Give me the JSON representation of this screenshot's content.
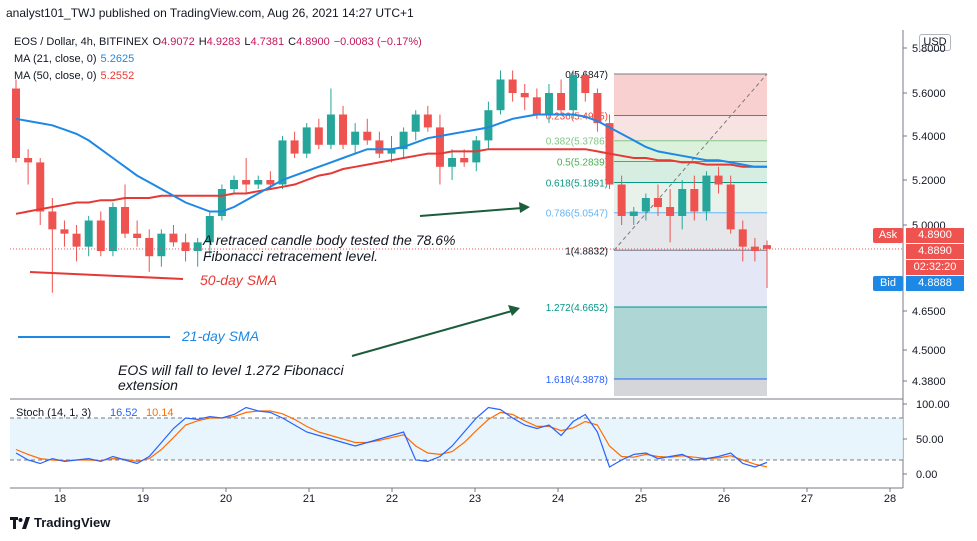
{
  "header": {
    "publish_line": "analyst101_TWJ published on TradingView.com, Aug 26, 2021 14:27 UTC+1"
  },
  "legend": {
    "symbol": "EOS / Dollar, 4h, BITFINEX",
    "open_label": "O",
    "open": "4.9072",
    "high_label": "H",
    "high": "4.9283",
    "low_label": "L",
    "low": "4.7381",
    "close_label": "C",
    "close": "4.8900",
    "change": "−0.0083 (−0.17%)",
    "ma21_label": "MA (21, close, 0)",
    "ma21_value": "5.2625",
    "ma50_label": "MA (50, close, 0)",
    "ma50_value": "5.2552"
  },
  "currency": "USD",
  "price_tags": {
    "ask_label": "Ask",
    "ask_value": "4.8900",
    "last_value": "4.8890",
    "countdown": "02:32:20",
    "bid_label": "Bid",
    "bid_value": "4.8888"
  },
  "colors": {
    "up": "#26a69a",
    "down": "#ef5350",
    "ma21": "#1e88e5",
    "ma50": "#e53935",
    "stoch_k": "#2962ff",
    "stoch_d": "#ff6d00",
    "annotation_green": "#1b5e3b"
  },
  "annotations": {
    "retrace_line1": "A retraced candle body tested the 78.6%",
    "retrace_line2": "Fibonacci retracement level.",
    "sma50": "50-day SMA",
    "sma21": "21-day SMA",
    "fall_line1": "EOS will fall to level 1.272 Fibonacci",
    "fall_line2": "extension"
  },
  "stoch": {
    "label": "Stoch (14, 1, 3)",
    "k_value": "16.52",
    "d_value": "10.14",
    "ticks": [
      "100.00",
      "50.00",
      "0.00"
    ]
  },
  "footer": {
    "brand": "TradingView",
    "logo_icon": "tradingview-logo-icon"
  },
  "chart_data": {
    "type": "candlestick",
    "price_axis": {
      "ticks": [
        "5.8000",
        "5.6000",
        "5.4000",
        "5.2000",
        "5.0000",
        "4.6500",
        "4.5000",
        "4.3800"
      ]
    },
    "time_axis": {
      "labels": [
        "18",
        "19",
        "20",
        "21",
        "22",
        "23",
        "24",
        "25",
        "26",
        "27",
        "28"
      ]
    },
    "candles": [
      [
        5.62,
        5.66,
        5.28,
        5.3
      ],
      [
        5.3,
        5.34,
        5.18,
        5.28
      ],
      [
        5.28,
        5.3,
        5.0,
        5.06
      ],
      [
        5.06,
        5.12,
        4.72,
        4.98
      ],
      [
        4.98,
        5.02,
        4.9,
        4.96
      ],
      [
        4.96,
        5.0,
        4.84,
        4.9
      ],
      [
        4.9,
        5.04,
        4.86,
        5.02
      ],
      [
        5.02,
        5.06,
        4.86,
        4.88
      ],
      [
        4.88,
        5.1,
        4.86,
        5.08
      ],
      [
        5.08,
        5.18,
        4.94,
        4.96
      ],
      [
        4.96,
        5.02,
        4.9,
        4.94
      ],
      [
        4.94,
        4.98,
        4.8,
        4.86
      ],
      [
        4.86,
        4.98,
        4.82,
        4.96
      ],
      [
        4.96,
        5.0,
        4.9,
        4.92
      ],
      [
        4.92,
        4.96,
        4.84,
        4.88
      ],
      [
        4.88,
        4.94,
        4.82,
        4.92
      ],
      [
        4.92,
        5.06,
        4.86,
        5.04
      ],
      [
        5.04,
        5.18,
        5.02,
        5.16
      ],
      [
        5.16,
        5.22,
        5.14,
        5.2
      ],
      [
        5.2,
        5.3,
        5.14,
        5.18
      ],
      [
        5.18,
        5.22,
        5.16,
        5.2
      ],
      [
        5.2,
        5.24,
        5.16,
        5.18
      ],
      [
        5.18,
        5.4,
        5.16,
        5.38
      ],
      [
        5.38,
        5.42,
        5.3,
        5.32
      ],
      [
        5.32,
        5.46,
        5.3,
        5.44
      ],
      [
        5.44,
        5.48,
        5.34,
        5.36
      ],
      [
        5.36,
        5.62,
        5.34,
        5.5
      ],
      [
        5.5,
        5.54,
        5.34,
        5.36
      ],
      [
        5.36,
        5.46,
        5.32,
        5.42
      ],
      [
        5.42,
        5.48,
        5.36,
        5.38
      ],
      [
        5.38,
        5.42,
        5.3,
        5.32
      ],
      [
        5.32,
        5.4,
        5.28,
        5.34
      ],
      [
        5.34,
        5.44,
        5.3,
        5.42
      ],
      [
        5.42,
        5.52,
        5.38,
        5.5
      ],
      [
        5.5,
        5.54,
        5.42,
        5.44
      ],
      [
        5.44,
        5.5,
        5.18,
        5.26
      ],
      [
        5.26,
        5.34,
        5.2,
        5.3
      ],
      [
        5.3,
        5.34,
        5.26,
        5.28
      ],
      [
        5.28,
        5.4,
        5.24,
        5.38
      ],
      [
        5.38,
        5.56,
        5.34,
        5.52
      ],
      [
        5.52,
        5.7,
        5.5,
        5.66
      ],
      [
        5.66,
        5.7,
        5.56,
        5.6
      ],
      [
        5.6,
        5.64,
        5.52,
        5.58
      ],
      [
        5.58,
        5.62,
        5.48,
        5.5
      ],
      [
        5.5,
        5.64,
        5.46,
        5.6
      ],
      [
        5.6,
        5.66,
        5.5,
        5.52
      ],
      [
        5.52,
        5.7,
        5.48,
        5.68
      ],
      [
        5.68,
        5.7,
        5.56,
        5.6
      ],
      [
        5.6,
        5.62,
        5.42,
        5.46
      ],
      [
        5.46,
        5.5,
        5.16,
        5.18
      ],
      [
        5.18,
        5.22,
        5.0,
        5.04
      ],
      [
        5.04,
        5.08,
        5.0,
        5.06
      ],
      [
        5.06,
        5.14,
        5.02,
        5.12
      ],
      [
        5.12,
        5.18,
        5.04,
        5.08
      ],
      [
        5.08,
        5.16,
        4.92,
        5.04
      ],
      [
        5.04,
        5.2,
        4.98,
        5.16
      ],
      [
        5.16,
        5.22,
        5.02,
        5.06
      ],
      [
        5.06,
        5.24,
        5.02,
        5.22
      ],
      [
        5.22,
        5.26,
        5.14,
        5.18
      ],
      [
        5.18,
        5.22,
        4.96,
        4.98
      ],
      [
        4.98,
        5.02,
        4.84,
        4.9
      ],
      [
        4.9,
        4.94,
        4.84,
        4.88
      ],
      [
        4.9072,
        4.9283,
        4.7381,
        4.89
      ]
    ],
    "ma21": [
      5.48,
      5.47,
      5.46,
      5.45,
      5.43,
      5.41,
      5.38,
      5.34,
      5.3,
      5.26,
      5.22,
      5.19,
      5.16,
      5.13,
      5.1,
      5.08,
      5.06,
      5.06,
      5.08,
      5.11,
      5.14,
      5.17,
      5.2,
      5.22,
      5.24,
      5.26,
      5.28,
      5.3,
      5.32,
      5.34,
      5.34,
      5.34,
      5.35,
      5.37,
      5.39,
      5.4,
      5.41,
      5.42,
      5.43,
      5.44,
      5.46,
      5.48,
      5.49,
      5.5,
      5.5,
      5.5,
      5.5,
      5.49,
      5.47,
      5.44,
      5.41,
      5.38,
      5.35,
      5.33,
      5.32,
      5.31,
      5.3,
      5.29,
      5.29,
      5.28,
      5.27,
      5.26,
      5.26
    ],
    "ma50": [
      5.05,
      5.06,
      5.07,
      5.08,
      5.09,
      5.1,
      5.1,
      5.11,
      5.11,
      5.12,
      5.12,
      5.12,
      5.13,
      5.13,
      5.13,
      5.13,
      5.13,
      5.13,
      5.14,
      5.14,
      5.15,
      5.16,
      5.17,
      5.18,
      5.2,
      5.22,
      5.23,
      5.25,
      5.26,
      5.27,
      5.28,
      5.29,
      5.3,
      5.31,
      5.32,
      5.32,
      5.33,
      5.33,
      5.33,
      5.34,
      5.34,
      5.34,
      5.34,
      5.34,
      5.34,
      5.34,
      5.34,
      5.34,
      5.33,
      5.32,
      5.31,
      5.3,
      5.3,
      5.29,
      5.29,
      5.28,
      5.28,
      5.27,
      5.27,
      5.27,
      5.26,
      5.26,
      5.26
    ],
    "fibonacci": [
      {
        "ratio_label": "0(5.6847)",
        "price": 5.6847
      },
      {
        "ratio_label": "0.236(5.4955)",
        "price": 5.4955
      },
      {
        "ratio_label": "0.382(5.3786)",
        "price": 5.3786
      },
      {
        "ratio_label": "0.5(5.2839)",
        "price": 5.2839
      },
      {
        "ratio_label": "0.618(5.1891)",
        "price": 5.1891
      },
      {
        "ratio_label": "0.786(5.0547)",
        "price": 5.0547
      },
      {
        "ratio_label": "1(4.8832)",
        "price": 4.8832
      },
      {
        "ratio_label": "1.272(4.6652)",
        "price": 4.6652
      },
      {
        "ratio_label": "1.618(4.3878)",
        "price": 4.3878
      }
    ],
    "stoch_k": [
      30,
      20,
      15,
      22,
      18,
      20,
      22,
      18,
      25,
      20,
      15,
      25,
      45,
      65,
      80,
      78,
      82,
      80,
      85,
      95,
      90,
      88,
      80,
      70,
      60,
      55,
      50,
      45,
      40,
      45,
      50,
      55,
      60,
      20,
      18,
      25,
      40,
      60,
      80,
      95,
      92,
      80,
      70,
      65,
      70,
      55,
      75,
      85,
      60,
      10,
      20,
      28,
      30,
      22,
      25,
      28,
      20,
      22,
      25,
      30,
      15,
      10,
      16.52
    ],
    "stoch_d": [
      35,
      28,
      22,
      20,
      19,
      20,
      20,
      19,
      22,
      21,
      18,
      22,
      35,
      52,
      70,
      76,
      80,
      80,
      82,
      88,
      90,
      90,
      86,
      78,
      68,
      60,
      55,
      50,
      45,
      45,
      48,
      52,
      56,
      40,
      30,
      28,
      32,
      45,
      62,
      78,
      88,
      85,
      76,
      68,
      68,
      62,
      66,
      75,
      70,
      40,
      25,
      24,
      28,
      25,
      24,
      26,
      24,
      22,
      23,
      26,
      20,
      14,
      10.14
    ]
  }
}
